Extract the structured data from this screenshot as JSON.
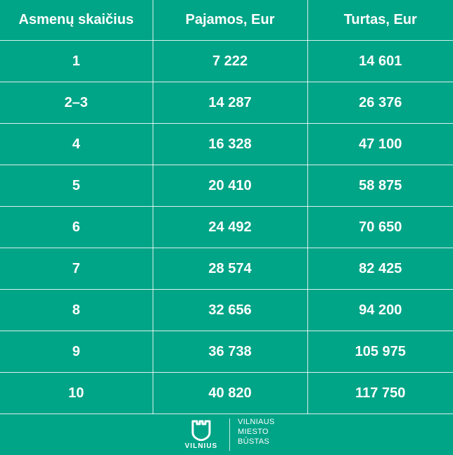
{
  "table": {
    "headers": [
      "Asmenų skaičius",
      "Pajamos, Eur",
      "Turtas, Eur"
    ],
    "rows": [
      [
        "1",
        "7 222",
        "14 601"
      ],
      [
        "2–3",
        "14 287",
        "26 376"
      ],
      [
        "4",
        "16 328",
        "47 100"
      ],
      [
        "5",
        "20 410",
        "58 875"
      ],
      [
        "6",
        "24 492",
        "70 650"
      ],
      [
        "7",
        "28 574",
        "82 425"
      ],
      [
        "8",
        "32 656",
        "94 200"
      ],
      [
        "9",
        "36 738",
        "105 975"
      ],
      [
        "10",
        "40 820",
        "117 750"
      ]
    ]
  },
  "footer": {
    "logo_word": "VILNIUS",
    "brand_lines": [
      "VILNIAUS",
      "MIESTO",
      "BŪSTAS"
    ]
  },
  "colors": {
    "background": "#00a487",
    "text": "#ffffff"
  }
}
